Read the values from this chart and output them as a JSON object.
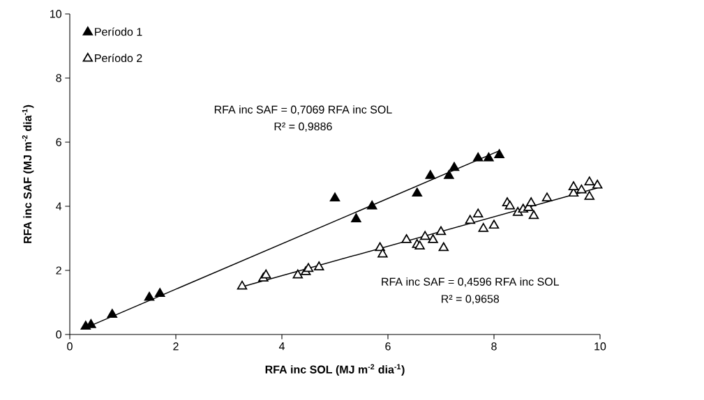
{
  "chart_data": {
    "type": "scatter",
    "xlabel": "RFA inc SOL (MJ m$^{-2}$ dia$^{-1}$)",
    "ylabel": "RFA inc SAF (MJ m$^{-2}$ dia$^{-1}$)",
    "xlim": [
      0,
      10
    ],
    "ylim": [
      0,
      10
    ],
    "xticks": [
      0,
      2,
      4,
      6,
      8,
      10
    ],
    "yticks": [
      0,
      2,
      4,
      6,
      8,
      10
    ],
    "grid": false,
    "legend": "top left",
    "marker": "triangle",
    "annotations": [
      "RFA inc SAF = 0,7069 RFA inc SOL",
      "R² = 0,9886",
      "RFA inc SAF = 0,4596 RFA inc SOL",
      "R² = 0,9658"
    ],
    "series": [
      {
        "name": "Período 1",
        "color": "#000000",
        "x": [
          0.3,
          0.4,
          0.8,
          1.5,
          1.7,
          5.0,
          5.4,
          5.7,
          6.55,
          6.8,
          7.15,
          7.25,
          7.7,
          7.9,
          8.1
        ],
        "values": [
          0.25,
          0.3,
          0.62,
          1.15,
          1.27,
          4.25,
          3.6,
          4.0,
          4.4,
          4.95,
          4.95,
          5.2,
          5.5,
          5.5,
          5.6
        ]
      },
      {
        "name": "Período 2",
        "color": "#ffffff",
        "x": [
          3.25,
          3.65,
          3.7,
          4.3,
          4.45,
          4.5,
          4.7,
          5.85,
          5.9,
          6.35,
          6.55,
          6.6,
          6.7,
          6.85,
          7.0,
          7.05,
          7.55,
          7.7,
          7.8,
          8.0,
          8.25,
          8.3,
          8.45,
          8.55,
          8.65,
          8.7,
          8.75,
          9.0,
          9.5,
          9.5,
          9.65,
          9.8,
          9.8,
          9.95
        ],
        "values": [
          1.5,
          1.75,
          1.85,
          1.85,
          1.95,
          2.05,
          2.1,
          2.7,
          2.5,
          2.95,
          2.8,
          2.75,
          3.05,
          2.95,
          3.2,
          2.7,
          3.55,
          3.75,
          3.3,
          3.4,
          4.1,
          4.0,
          3.8,
          3.9,
          3.95,
          4.1,
          3.7,
          4.25,
          4.4,
          4.6,
          4.5,
          4.75,
          4.3,
          4.65
        ]
      },
      {
        "type": "line",
        "marker": "none",
        "color": "#000000",
        "x": [
          0.3,
          8.1
        ],
        "values": [
          0.21,
          5.73
        ]
      },
      {
        "type": "line",
        "marker": "none",
        "color": "#000000",
        "x": [
          3.25,
          9.95
        ],
        "values": [
          1.49,
          4.57
        ]
      }
    ]
  }
}
